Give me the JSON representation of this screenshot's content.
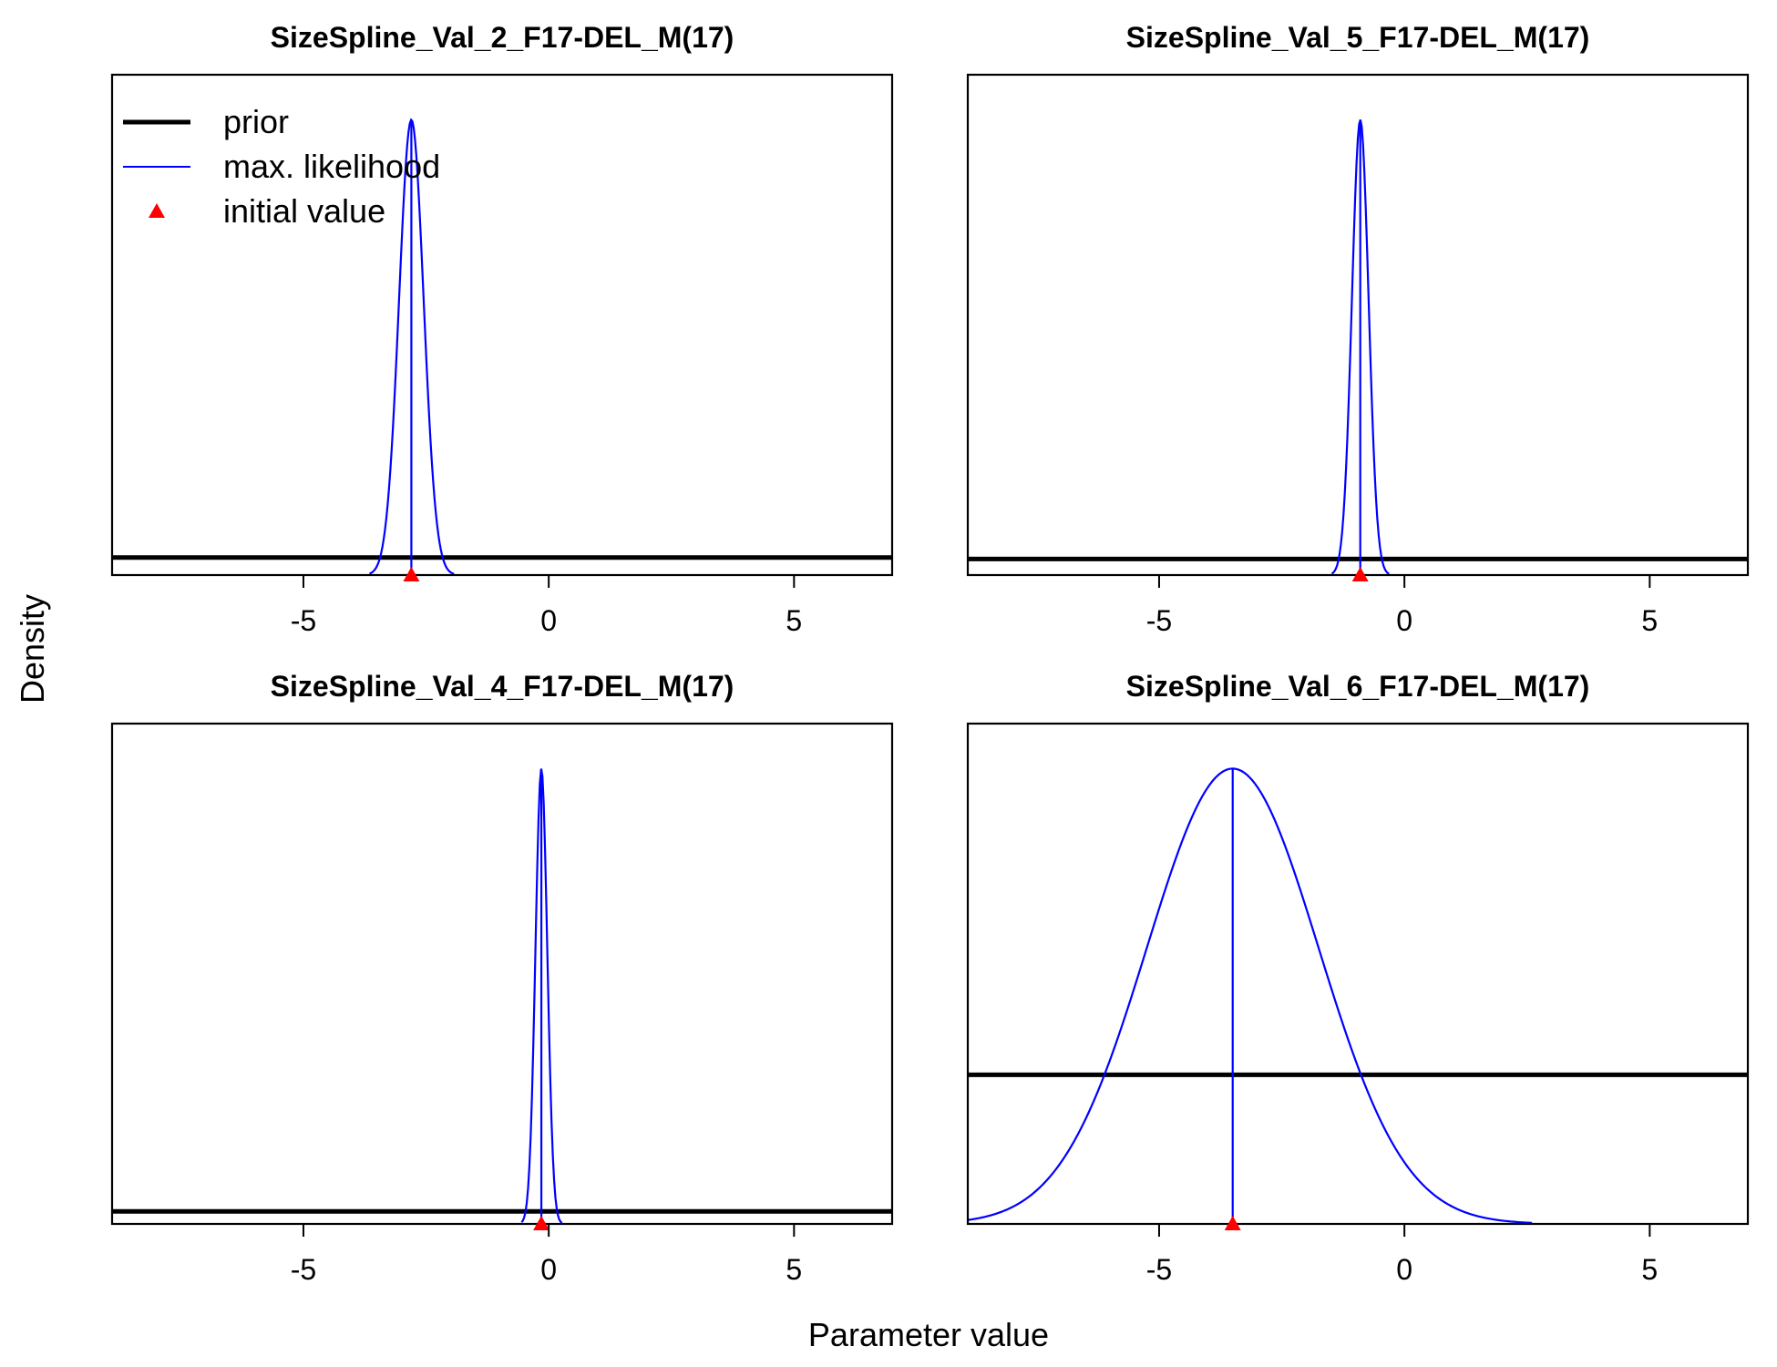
{
  "figure": {
    "xlabel": "Parameter value",
    "ylabel": "Density",
    "legend": {
      "placement": "top-left of first panel",
      "entries": [
        {
          "label": "prior",
          "style": "thick-line",
          "color": "#000000"
        },
        {
          "label": "max. likelihood",
          "style": "thin-line",
          "color": "#0000ff"
        },
        {
          "label": "initial value",
          "style": "triangle",
          "color": "#ff0000"
        }
      ]
    }
  },
  "colors": {
    "prior": "#000000",
    "mle": "#0000ff",
    "initial": "#ff0000",
    "frame": "#000000"
  },
  "chart_data": [
    {
      "type": "line",
      "title": "SizeSpline_Val_2_F17-DEL_M(17)",
      "xlim": [
        -8.9,
        7.0
      ],
      "xticks": [
        -5,
        0,
        5
      ],
      "series": [
        {
          "name": "prior",
          "kind": "uniform",
          "y_frac": 0.035
        },
        {
          "name": "max. likelihood",
          "kind": "normal",
          "mean": -2.8,
          "sd": 0.25,
          "peak_frac": 0.91
        }
      ],
      "initial_value": -2.8
    },
    {
      "type": "line",
      "title": "SizeSpline_Val_5_F17-DEL_M(17)",
      "xlim": [
        -8.9,
        7.0
      ],
      "xticks": [
        -5,
        0,
        5
      ],
      "series": [
        {
          "name": "prior",
          "kind": "uniform",
          "y_frac": 0.032
        },
        {
          "name": "max. likelihood",
          "kind": "normal",
          "mean": -0.9,
          "sd": 0.17,
          "peak_frac": 0.91
        }
      ],
      "initial_value": -0.9
    },
    {
      "type": "line",
      "title": "SizeSpline_Val_4_F17-DEL_M(17)",
      "xlim": [
        -8.9,
        7.0
      ],
      "xticks": [
        -5,
        0,
        5
      ],
      "series": [
        {
          "name": "prior",
          "kind": "uniform",
          "y_frac": 0.025
        },
        {
          "name": "max. likelihood",
          "kind": "normal",
          "mean": -0.15,
          "sd": 0.12,
          "peak_frac": 0.91
        }
      ],
      "initial_value": -0.15
    },
    {
      "type": "line",
      "title": "SizeSpline_Val_6_F17-DEL_M(17)",
      "xlim": [
        -8.9,
        7.0
      ],
      "xticks": [
        -5,
        0,
        5
      ],
      "series": [
        {
          "name": "prior",
          "kind": "uniform",
          "y_frac": 0.298
        },
        {
          "name": "max. likelihood",
          "kind": "normal",
          "mean": -3.5,
          "sd": 1.75,
          "peak_frac": 0.91
        }
      ],
      "initial_value": -3.5
    }
  ]
}
